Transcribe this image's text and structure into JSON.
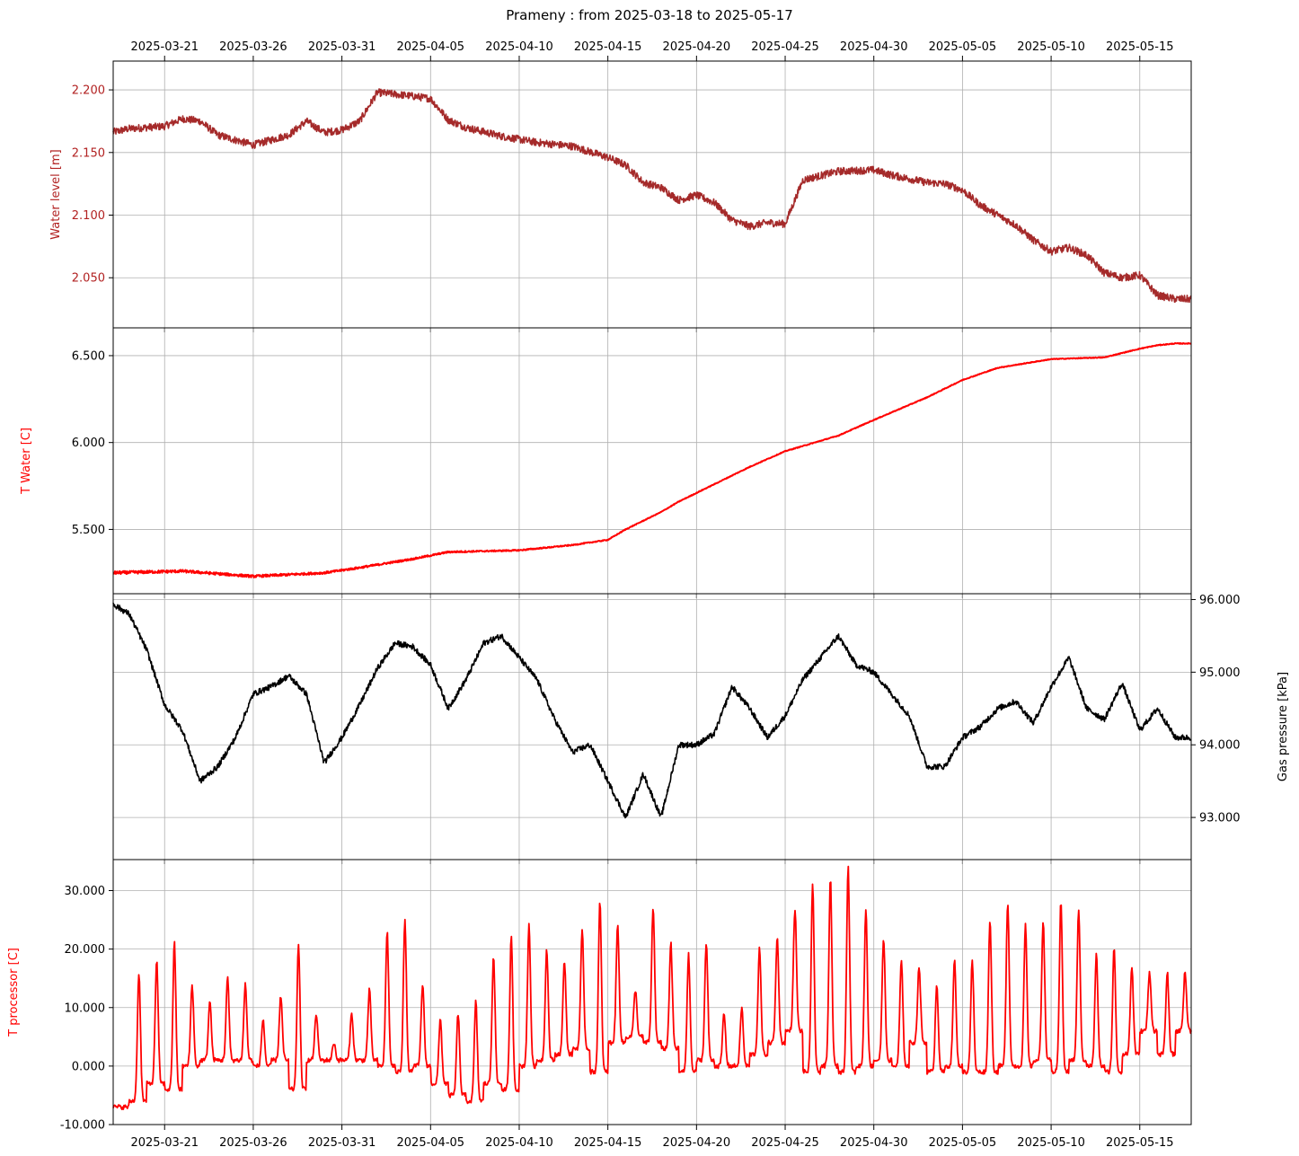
{
  "title": "Prameny : from 2025-03-18 to 2025-05-17",
  "x_ticks": [
    "2025-03-21",
    "2025-03-26",
    "2025-03-31",
    "2025-04-05",
    "2025-04-10",
    "2025-04-15",
    "2025-04-20",
    "2025-04-25",
    "2025-04-30",
    "2025-05-05",
    "2025-05-10",
    "2025-05-15"
  ],
  "colors": {
    "water_level": "#a52a2a",
    "t_water": "#ff0000",
    "gas_pressure": "#000000",
    "t_processor": "#ff0000",
    "grid": "#b0b0b0"
  },
  "chart_data": [
    {
      "type": "line",
      "name": "water-level",
      "ylabel": "Water level [m]",
      "ylim": [
        2.01,
        2.223
      ],
      "yticks": [
        "2.050",
        "2.100",
        "2.150",
        "2.200"
      ],
      "grid": true,
      "x_range": [
        "2025-03-18",
        "2025-05-17"
      ],
      "series": [
        {
          "name": "Water level [m]",
          "x": [
            "2025-03-18",
            "2025-03-19",
            "2025-03-21",
            "2025-03-22",
            "2025-03-23",
            "2025-03-24",
            "2025-03-26",
            "2025-03-27",
            "2025-03-28",
            "2025-03-29",
            "2025-03-30",
            "2025-03-31",
            "2025-04-01",
            "2025-04-02",
            "2025-04-04",
            "2025-04-05",
            "2025-04-06",
            "2025-04-07",
            "2025-04-09",
            "2025-04-11",
            "2025-04-13",
            "2025-04-15",
            "2025-04-16",
            "2025-04-17",
            "2025-04-18",
            "2025-04-19",
            "2025-04-20",
            "2025-04-21",
            "2025-04-22",
            "2025-04-23",
            "2025-04-24",
            "2025-04-25",
            "2025-04-26",
            "2025-04-28",
            "2025-04-30",
            "2025-05-01",
            "2025-05-03",
            "2025-05-04",
            "2025-05-05",
            "2025-05-06",
            "2025-05-08",
            "2025-05-09",
            "2025-05-10",
            "2025-05-11",
            "2025-05-12",
            "2025-05-13",
            "2025-05-14",
            "2025-05-15",
            "2025-05-16",
            "2025-05-17"
          ],
          "values": [
            2.166,
            2.169,
            2.171,
            2.177,
            2.175,
            2.164,
            2.156,
            2.16,
            2.164,
            2.175,
            2.166,
            2.168,
            2.175,
            2.198,
            2.195,
            2.193,
            2.176,
            2.17,
            2.163,
            2.158,
            2.155,
            2.146,
            2.14,
            2.126,
            2.122,
            2.112,
            2.116,
            2.11,
            2.096,
            2.091,
            2.094,
            2.093,
            2.128,
            2.135,
            2.136,
            2.132,
            2.126,
            2.125,
            2.12,
            2.108,
            2.092,
            2.08,
            2.071,
            2.074,
            2.068,
            2.054,
            2.05,
            2.052,
            2.036,
            2.033
          ]
        }
      ]
    },
    {
      "type": "line",
      "name": "t-water",
      "ylabel": "T Water [C]",
      "ylim": [
        5.13,
        6.66
      ],
      "yticks": [
        "5.500",
        "6.000",
        "6.500"
      ],
      "grid": true,
      "x_range": [
        "2025-03-18",
        "2025-05-17"
      ],
      "series": [
        {
          "name": "T Water [C]",
          "x": [
            "2025-03-18",
            "2025-03-22",
            "2025-03-26",
            "2025-03-30",
            "2025-04-01",
            "2025-04-04",
            "2025-04-06",
            "2025-04-10",
            "2025-04-13",
            "2025-04-15",
            "2025-04-16",
            "2025-04-18",
            "2025-04-19",
            "2025-04-20",
            "2025-04-23",
            "2025-04-25",
            "2025-04-28",
            "2025-04-30",
            "2025-05-03",
            "2025-05-05",
            "2025-05-07",
            "2025-05-10",
            "2025-05-13",
            "2025-05-15",
            "2025-05-16",
            "2025-05-17"
          ],
          "values": [
            5.25,
            5.26,
            5.23,
            5.25,
            5.28,
            5.33,
            5.37,
            5.38,
            5.41,
            5.44,
            5.5,
            5.6,
            5.66,
            5.71,
            5.86,
            5.95,
            6.04,
            6.13,
            6.26,
            6.36,
            6.43,
            6.48,
            6.49,
            6.54,
            6.56,
            6.57
          ]
        }
      ]
    },
    {
      "type": "line",
      "name": "gas-pressure",
      "ylabel": "Gas pressure [kPa]",
      "ylim": [
        92.42,
        96.08
      ],
      "yticks": [
        "93.000",
        "94.000",
        "95.000",
        "96.000"
      ],
      "grid": true,
      "x_range": [
        "2025-03-18",
        "2025-05-17"
      ],
      "series": [
        {
          "name": "Gas pressure [kPa]",
          "x": [
            "2025-03-18",
            "2025-03-19",
            "2025-03-20",
            "2025-03-21",
            "2025-03-22",
            "2025-03-23",
            "2025-03-24",
            "2025-03-25",
            "2025-03-26",
            "2025-03-27",
            "2025-03-28",
            "2025-03-29",
            "2025-03-30",
            "2025-03-31",
            "2025-04-01",
            "2025-04-02",
            "2025-04-03",
            "2025-04-04",
            "2025-04-05",
            "2025-04-06",
            "2025-04-07",
            "2025-04-08",
            "2025-04-09",
            "2025-04-10",
            "2025-04-11",
            "2025-04-12",
            "2025-04-13",
            "2025-04-14",
            "2025-04-15",
            "2025-04-16",
            "2025-04-17",
            "2025-04-18",
            "2025-04-19",
            "2025-04-20",
            "2025-04-21",
            "2025-04-22",
            "2025-04-23",
            "2025-04-24",
            "2025-04-25",
            "2025-04-26",
            "2025-04-27",
            "2025-04-28",
            "2025-04-29",
            "2025-04-30",
            "2025-05-01",
            "2025-05-02",
            "2025-05-03",
            "2025-05-04",
            "2025-05-05",
            "2025-05-06",
            "2025-05-07",
            "2025-05-08",
            "2025-05-09",
            "2025-05-10",
            "2025-05-11",
            "2025-05-12",
            "2025-05-13",
            "2025-05-14",
            "2025-05-15",
            "2025-05-16",
            "2025-05-17"
          ],
          "values": [
            95.95,
            95.8,
            95.3,
            94.55,
            94.2,
            93.5,
            93.7,
            94.1,
            94.7,
            94.8,
            94.95,
            94.7,
            93.75,
            94.1,
            94.55,
            95.05,
            95.4,
            95.35,
            95.1,
            94.5,
            94.9,
            95.4,
            95.5,
            95.2,
            94.9,
            94.35,
            93.9,
            94.0,
            93.5,
            93.0,
            93.6,
            93.0,
            94.0,
            94.0,
            94.15,
            94.8,
            94.5,
            94.1,
            94.4,
            94.9,
            95.2,
            95.5,
            95.1,
            95.0,
            94.7,
            94.4,
            93.7,
            93.7,
            94.1,
            94.25,
            94.5,
            94.6,
            94.3,
            94.8,
            95.2,
            94.5,
            94.35,
            94.85,
            94.2,
            94.5,
            94.1
          ]
        }
      ]
    },
    {
      "type": "line",
      "name": "t-processor",
      "ylabel": "T processor [C]",
      "ylim": [
        -10.0,
        35.3
      ],
      "yticks": [
        "-10.000",
        "0.000",
        "10.000",
        "20.000",
        "30.000"
      ],
      "grid": true,
      "x_range": [
        "2025-03-18",
        "2025-05-17"
      ],
      "series": [
        {
          "name": "T processor [C]",
          "x": [
            "2025-03-18",
            "2025-03-19",
            "2025-03-20",
            "2025-03-21",
            "2025-03-22",
            "2025-03-23",
            "2025-03-24",
            "2025-03-25",
            "2025-03-26",
            "2025-03-27",
            "2025-03-28",
            "2025-03-29",
            "2025-03-30",
            "2025-03-31",
            "2025-04-01",
            "2025-04-02",
            "2025-04-03",
            "2025-04-04",
            "2025-04-05",
            "2025-04-06",
            "2025-04-07",
            "2025-04-08",
            "2025-04-09",
            "2025-04-10",
            "2025-04-11",
            "2025-04-12",
            "2025-04-13",
            "2025-04-14",
            "2025-04-15",
            "2025-04-16",
            "2025-04-17",
            "2025-04-18",
            "2025-04-19",
            "2025-04-20",
            "2025-04-21",
            "2025-04-22",
            "2025-04-23",
            "2025-04-24",
            "2025-04-25",
            "2025-04-26",
            "2025-04-27",
            "2025-04-28",
            "2025-04-29",
            "2025-04-30",
            "2025-05-01",
            "2025-05-02",
            "2025-05-03",
            "2025-05-04",
            "2025-05-05",
            "2025-05-06",
            "2025-05-07",
            "2025-05-08",
            "2025-05-09",
            "2025-05-10",
            "2025-05-11",
            "2025-05-12",
            "2025-05-13",
            "2025-05-14",
            "2025-05-15",
            "2025-05-16",
            "2025-05-17"
          ],
          "min": [
            -7,
            -6,
            -3,
            -4,
            0,
            1,
            1,
            1,
            0,
            1,
            -4,
            1,
            1,
            1,
            1,
            0,
            -1,
            0,
            -3,
            -5,
            -6,
            -3,
            -4,
            0,
            1,
            2,
            3,
            -1,
            4,
            5,
            4,
            3,
            -1,
            1,
            0,
            0,
            2,
            4,
            6,
            -1,
            0,
            -1,
            0,
            1,
            0,
            4,
            -1,
            0,
            -1,
            -1,
            0,
            0,
            1,
            -1,
            1,
            0,
            -1,
            2,
            6,
            2,
            6
          ],
          "max": [
            -7,
            16,
            18,
            21,
            14,
            11,
            15,
            14,
            8,
            12,
            21,
            9,
            4,
            9,
            13,
            23,
            25,
            14,
            8,
            9,
            11,
            19,
            22,
            24,
            20,
            18,
            23,
            28,
            24,
            13,
            27,
            21,
            19,
            21,
            9,
            10,
            20,
            22,
            27,
            31,
            32,
            34,
            27,
            22,
            18,
            17,
            14,
            18,
            18,
            25,
            28,
            24,
            25,
            28,
            27,
            19,
            20,
            17,
            16,
            16,
            16
          ]
        }
      ]
    }
  ]
}
